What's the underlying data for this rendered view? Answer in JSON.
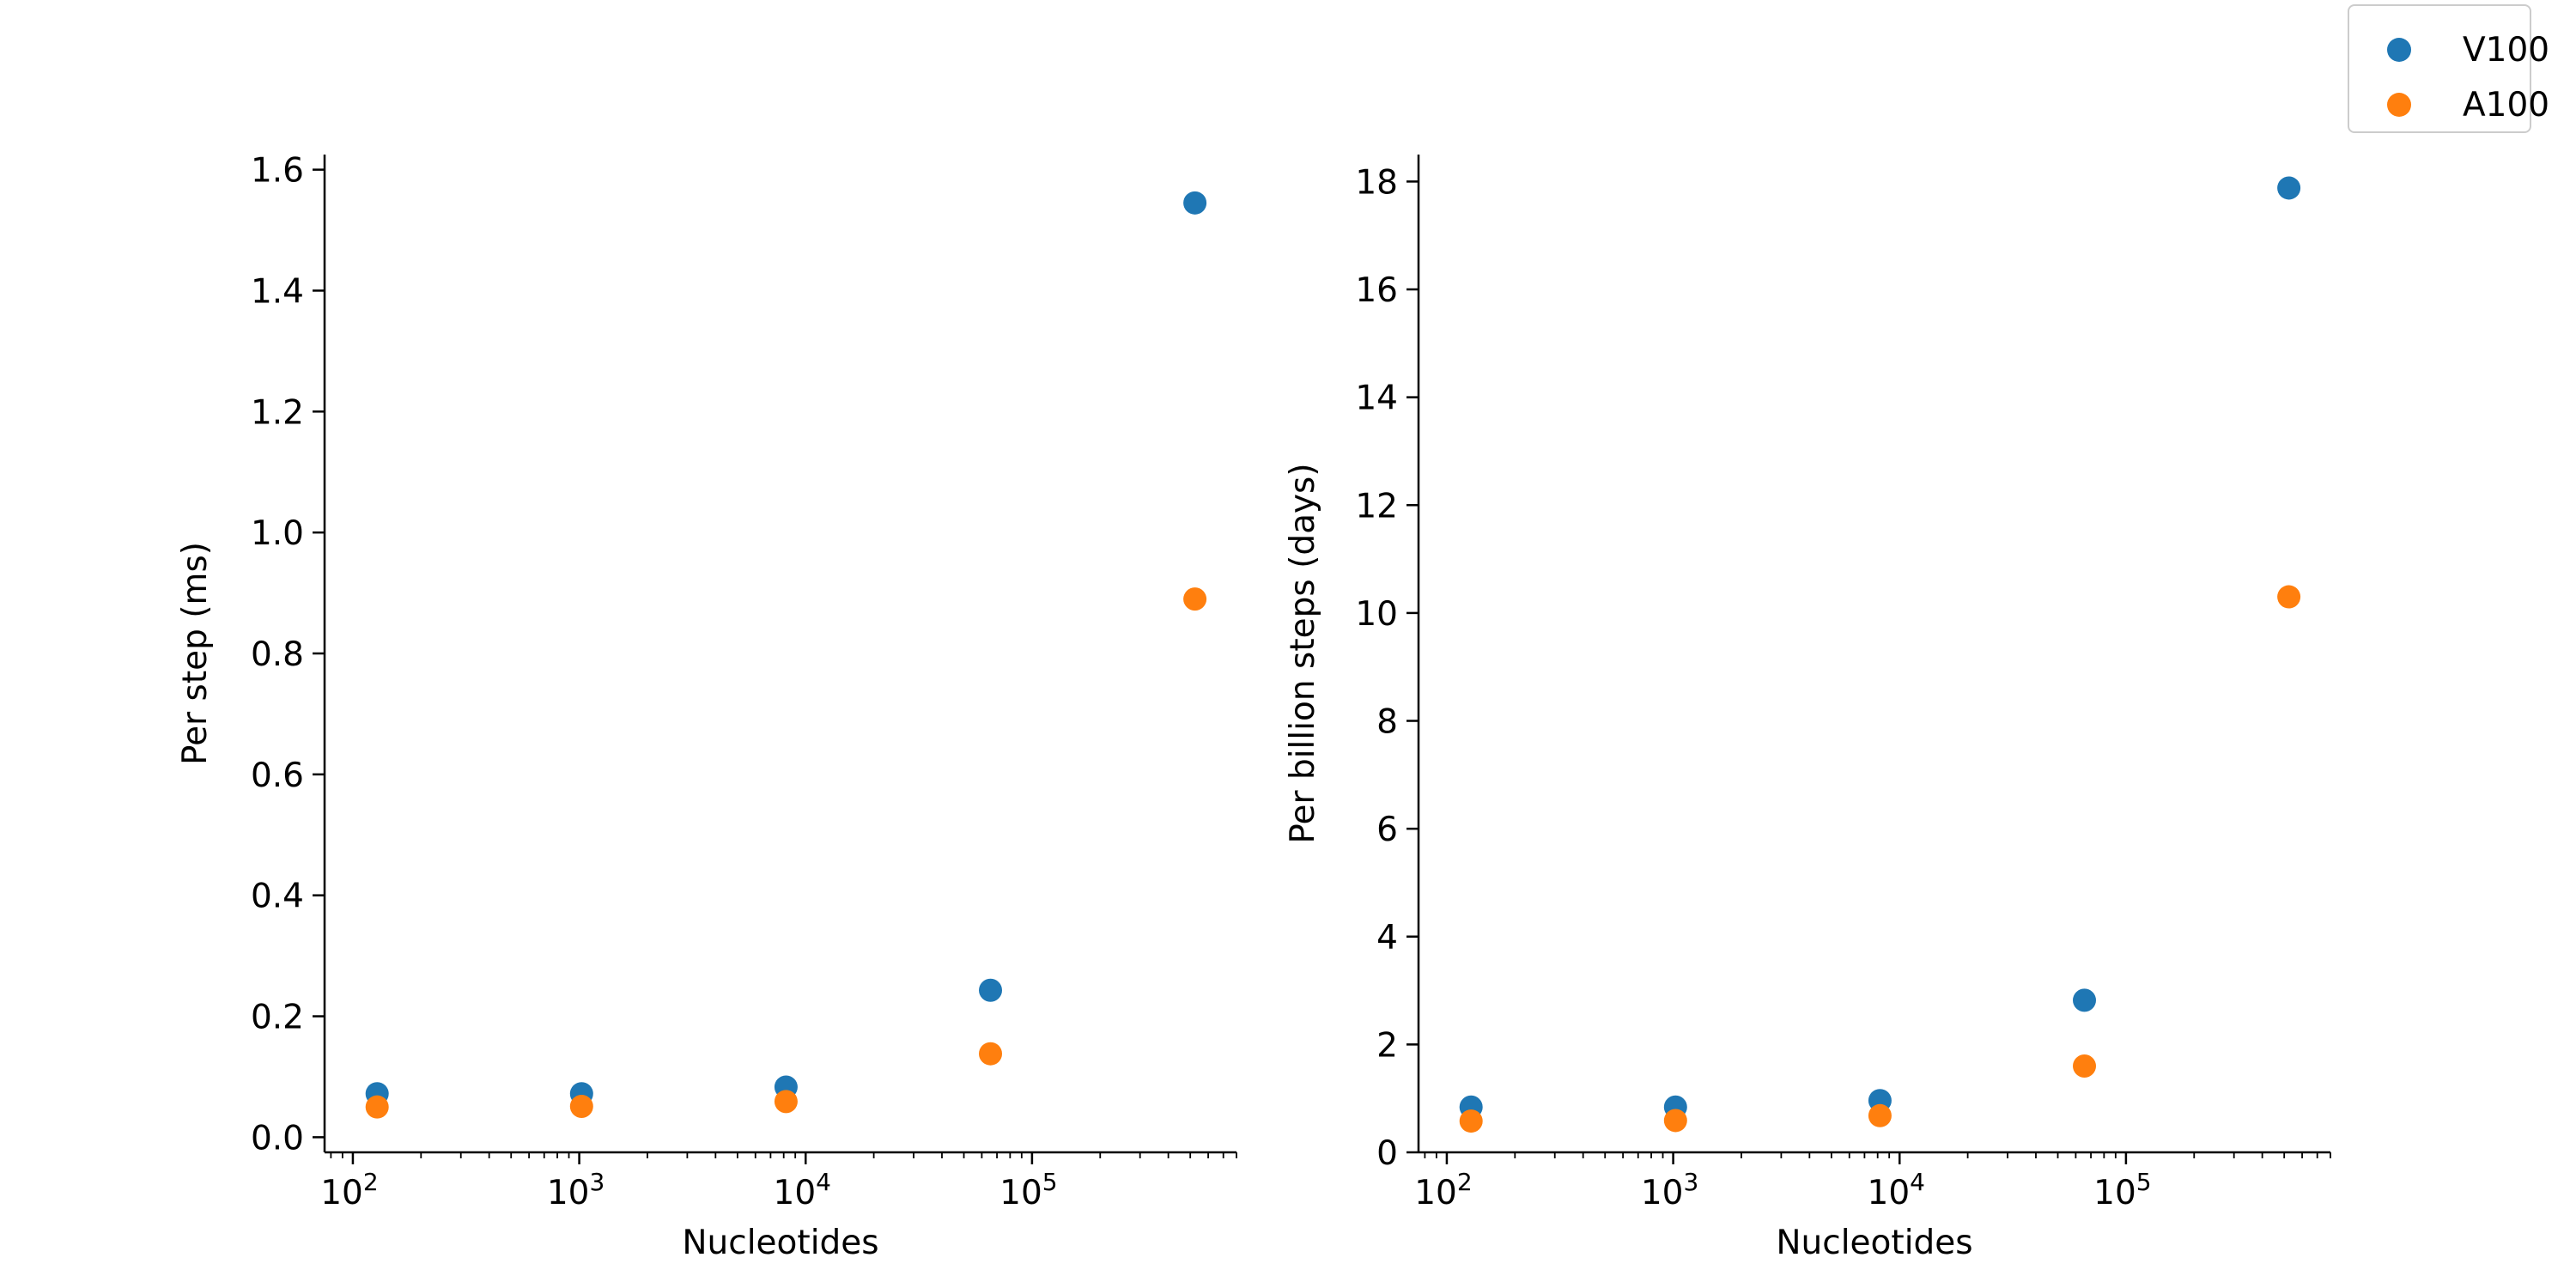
{
  "chart_data": [
    {
      "type": "scatter",
      "xlabel": "Nucleotides",
      "ylabel": "Per step (ms)",
      "xscale": "log",
      "xlim": [
        75,
        800000
      ],
      "ylim": [
        -0.025,
        1.625
      ],
      "x_ticks": [
        {
          "base": "10",
          "exp": "2",
          "value": 100
        },
        {
          "base": "10",
          "exp": "3",
          "value": 1000
        },
        {
          "base": "10",
          "exp": "4",
          "value": 10000
        },
        {
          "base": "10",
          "exp": "5",
          "value": 100000
        }
      ],
      "y_ticks": [
        {
          "label": "0.0",
          "value": 0.0
        },
        {
          "label": "0.2",
          "value": 0.2
        },
        {
          "label": "0.4",
          "value": 0.4
        },
        {
          "label": "0.6",
          "value": 0.6
        },
        {
          "label": "0.8",
          "value": 0.8
        },
        {
          "label": "1.0",
          "value": 1.0
        },
        {
          "label": "1.2",
          "value": 1.2
        },
        {
          "label": "1.4",
          "value": 1.4
        },
        {
          "label": "1.6",
          "value": 1.6
        }
      ],
      "x": [
        128,
        1024,
        8192,
        65536,
        524288
      ],
      "series": [
        {
          "name": "V100",
          "color": "#1f77b4",
          "values": [
            0.072,
            0.072,
            0.083,
            0.243,
            1.545
          ]
        },
        {
          "name": "A100",
          "color": "#ff7f0e",
          "values": [
            0.05,
            0.051,
            0.059,
            0.138,
            0.89
          ]
        }
      ],
      "grid": false
    },
    {
      "type": "scatter",
      "xlabel": "Nucleotides",
      "ylabel": "Per billion steps (days)",
      "xscale": "log",
      "xlim": [
        75,
        800000
      ],
      "ylim": [
        0,
        18.5
      ],
      "x_ticks": [
        {
          "base": "10",
          "exp": "2",
          "value": 100
        },
        {
          "base": "10",
          "exp": "3",
          "value": 1000
        },
        {
          "base": "10",
          "exp": "4",
          "value": 10000
        },
        {
          "base": "10",
          "exp": "5",
          "value": 100000
        }
      ],
      "y_ticks": [
        {
          "label": "0",
          "value": 0
        },
        {
          "label": "2",
          "value": 2
        },
        {
          "label": "4",
          "value": 4
        },
        {
          "label": "6",
          "value": 6
        },
        {
          "label": "8",
          "value": 8
        },
        {
          "label": "10",
          "value": 10
        },
        {
          "label": "12",
          "value": 12
        },
        {
          "label": "14",
          "value": 14
        },
        {
          "label": "16",
          "value": 16
        },
        {
          "label": "18",
          "value": 18
        }
      ],
      "x": [
        128,
        1024,
        8192,
        65536,
        524288
      ],
      "series": [
        {
          "name": "V100",
          "color": "#1f77b4",
          "values": [
            0.84,
            0.84,
            0.96,
            2.82,
            17.88
          ]
        },
        {
          "name": "A100",
          "color": "#ff7f0e",
          "values": [
            0.58,
            0.59,
            0.68,
            1.6,
            10.3
          ]
        }
      ],
      "grid": false
    }
  ],
  "legend": {
    "placement": "top-right",
    "entries": [
      {
        "label": "V100",
        "color": "#1f77b4"
      },
      {
        "label": "A100",
        "color": "#ff7f0e"
      }
    ]
  }
}
